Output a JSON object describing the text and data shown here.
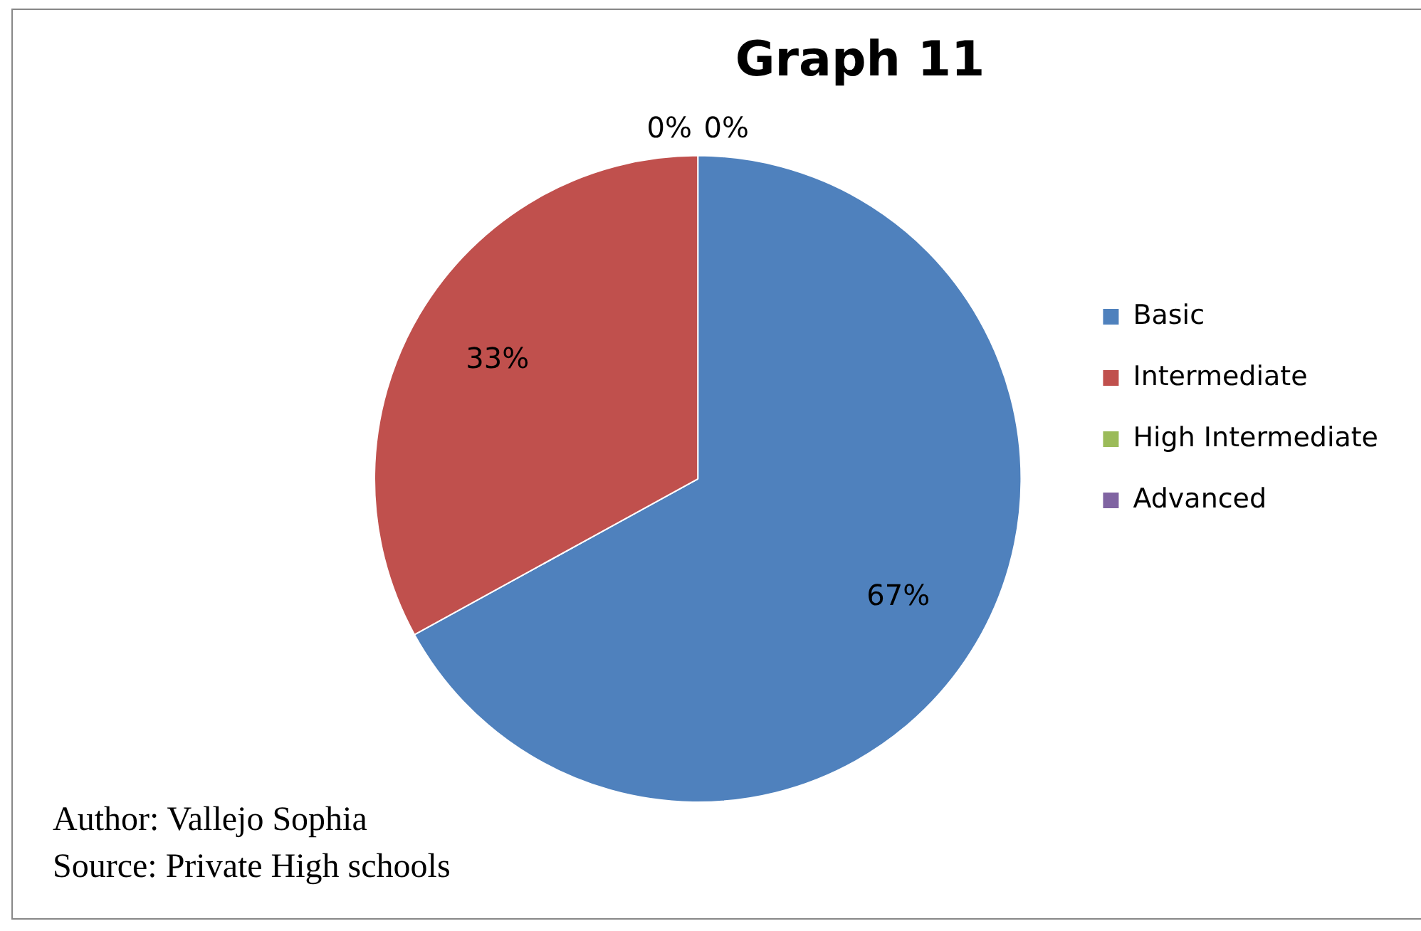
{
  "chart_data": {
    "type": "pie",
    "title": "Graph 11",
    "categories": [
      "Basic",
      "Intermediate",
      "High Intermediate",
      "Advanced"
    ],
    "values": [
      67,
      33,
      0,
      0
    ],
    "colors": [
      "#4f81bd",
      "#c0504d",
      "#9bbb59",
      "#8064a2"
    ],
    "value_labels": [
      "67%",
      "33%",
      "0%",
      "0%"
    ],
    "legend": "right",
    "annotations": [
      "Author: Vallejo Sophia",
      "Source: Private High schools"
    ]
  }
}
